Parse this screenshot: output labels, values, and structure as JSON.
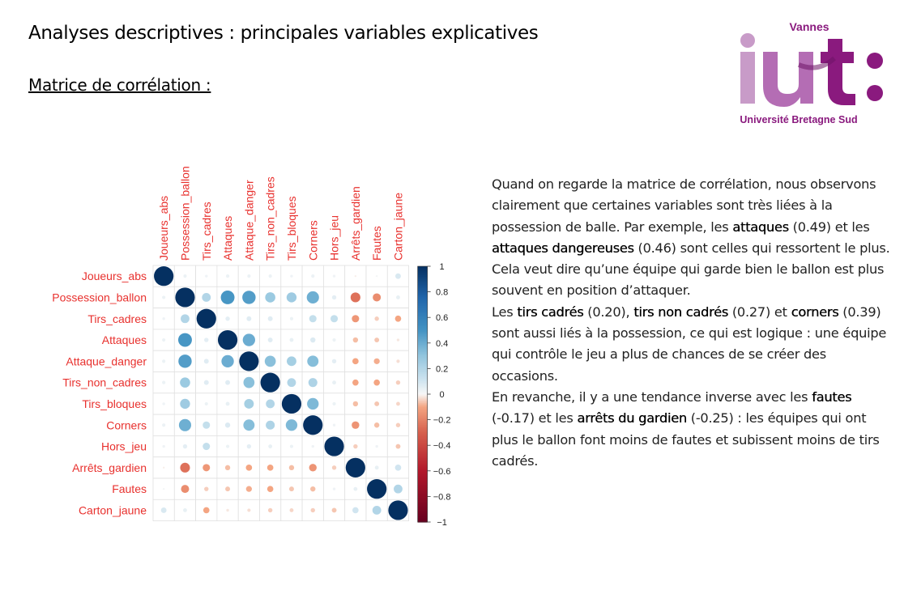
{
  "header": {
    "title": "Analyses descriptives : principales variables explicatives",
    "subtitle": "Matrice de corrélation :"
  },
  "logo": {
    "top_text": "Vannes",
    "bottom_text": "Université Bretagne Sud",
    "letters": "iut:",
    "colors": {
      "light": "#c89bc8",
      "mid": "#a64ca6",
      "dark": "#8a1a7e"
    }
  },
  "chart_data": {
    "type": "heatmap",
    "subtype": "correlation-circles",
    "variables": [
      "Joueurs_abs",
      "Possession_ballon",
      "Tirs_cadres",
      "Attaques",
      "Attaque_danger",
      "Tirs_non_cadres",
      "Tirs_bloques",
      "Corners",
      "Hors_jeu",
      "Arrêts_gardien",
      "Fautes",
      "Carton_jaune"
    ],
    "matrix": [
      [
        1.0,
        0.03,
        0.02,
        0.03,
        0.03,
        0.03,
        0.02,
        0.03,
        0.02,
        -0.01,
        0.01,
        0.08
      ],
      [
        0.03,
        1.0,
        0.2,
        0.49,
        0.46,
        0.27,
        0.26,
        0.39,
        0.05,
        -0.25,
        -0.17,
        0.04
      ],
      [
        0.02,
        0.2,
        1.0,
        0.05,
        0.06,
        0.06,
        0.03,
        0.14,
        0.14,
        -0.14,
        -0.05,
        -0.1
      ],
      [
        0.03,
        0.49,
        0.05,
        1.0,
        0.4,
        0.06,
        0.04,
        0.07,
        0.03,
        -0.07,
        -0.06,
        -0.02
      ],
      [
        0.03,
        0.46,
        0.06,
        0.4,
        1.0,
        0.32,
        0.24,
        0.33,
        0.05,
        -0.1,
        -0.09,
        -0.03
      ],
      [
        0.03,
        0.27,
        0.06,
        0.06,
        0.32,
        1.0,
        0.2,
        0.21,
        0.04,
        -0.1,
        -0.1,
        -0.05
      ],
      [
        0.02,
        0.26,
        0.03,
        0.04,
        0.24,
        0.2,
        1.0,
        0.35,
        0.03,
        -0.07,
        -0.06,
        -0.04
      ],
      [
        0.03,
        0.39,
        0.14,
        0.07,
        0.33,
        0.21,
        0.35,
        1.0,
        0.02,
        -0.15,
        -0.07,
        -0.05
      ],
      [
        0.02,
        0.05,
        0.14,
        0.03,
        0.05,
        0.04,
        0.03,
        0.02,
        1.0,
        -0.05,
        0.02,
        -0.06
      ],
      [
        -0.01,
        -0.25,
        -0.14,
        -0.07,
        -0.1,
        -0.1,
        -0.07,
        -0.15,
        -0.05,
        1.0,
        0.04,
        0.1
      ],
      [
        0.01,
        -0.17,
        -0.05,
        -0.06,
        -0.09,
        -0.1,
        -0.06,
        -0.07,
        0.02,
        0.04,
        1.0,
        0.2
      ],
      [
        0.08,
        0.04,
        -0.1,
        -0.02,
        -0.03,
        -0.05,
        -0.04,
        -0.05,
        -0.06,
        0.1,
        0.2,
        1.0
      ]
    ],
    "legend_ticks": [
      "1",
      "0.8",
      "0.6",
      "0.4",
      "0.2",
      "0",
      "−0.2",
      "−0.4",
      "−0.6",
      "−0.8",
      "−1"
    ],
    "color_range": [
      -1,
      1
    ],
    "colors": {
      "positive": "#053061",
      "zero": "#f7f7f7",
      "negative": "#67001f",
      "label": "#e8312e"
    },
    "legend_position": "right"
  },
  "text": {
    "p1": [
      {
        "t": "Quand on regarde la matrice de corrélation, nous observons clairement que certaines variables sont très liées à la possession de balle. Par exemple, les "
      },
      {
        "t": "attaques",
        "b": true
      },
      {
        "t": " (0.49) et les "
      },
      {
        "t": "attaques dangereuses",
        "b": true
      },
      {
        "t": " (0.46) sont celles qui ressortent le plus. Cela veut dire qu’une équipe qui garde bien le ballon est plus souvent en position d’attaquer."
      }
    ],
    "p2": [
      {
        "t": "Les "
      },
      {
        "t": "tirs cadrés",
        "b": true
      },
      {
        "t": " (0.20), "
      },
      {
        "t": "tirs non cadrés",
        "b": true
      },
      {
        "t": " (0.27) et "
      },
      {
        "t": "corners",
        "b": true
      },
      {
        "t": " (0.39) sont aussi liés à la possession, ce qui est logique : une équipe qui contrôle le jeu a plus de chances de se créer des occasions."
      }
    ],
    "p3": [
      {
        "t": "En revanche, il y a une tendance inverse avec les "
      },
      {
        "t": "fautes",
        "b": true
      },
      {
        "t": " (-0.17) et les "
      },
      {
        "t": "arrêts du gardien",
        "b": true
      },
      {
        "t": " (-0.25) : les équipes qui ont plus le ballon font moins de fautes et subissent moins de tirs cadrés."
      }
    ]
  }
}
